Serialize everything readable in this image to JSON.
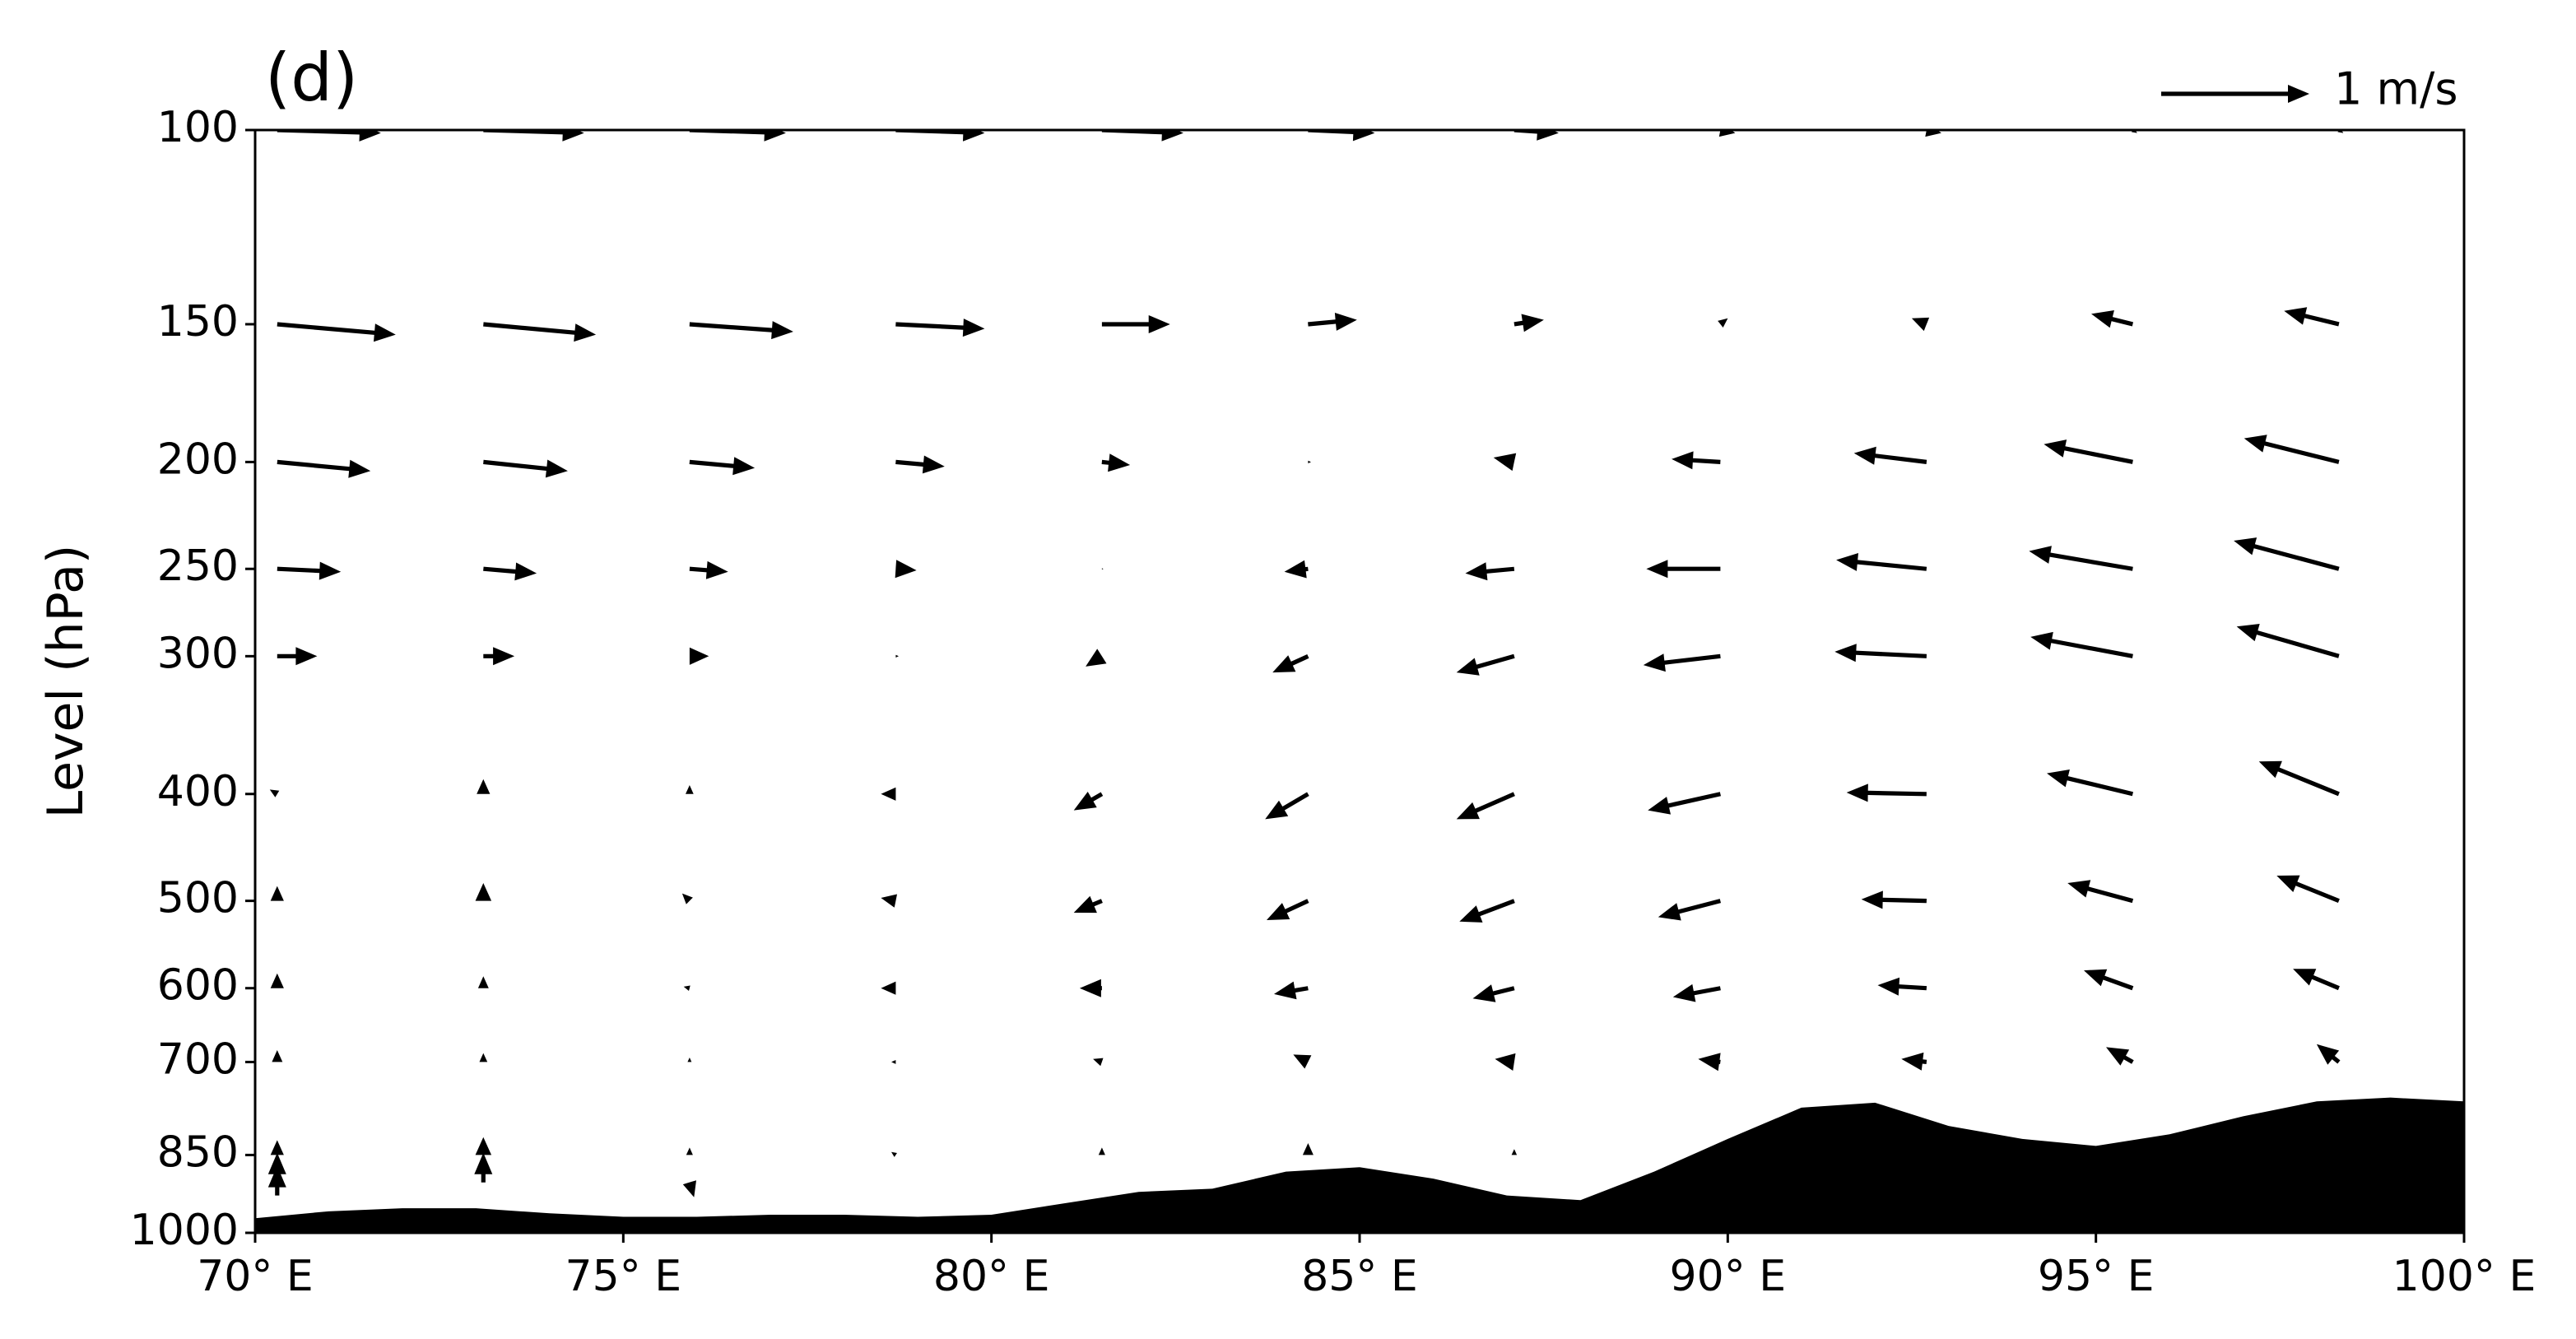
{
  "chart_data": {
    "type": "quiver",
    "title": "(d)",
    "ylabel": "Level (hPa)",
    "x": [
      70.3,
      73.1,
      75.9,
      78.7,
      81.5,
      84.3,
      87.1,
      89.9,
      92.7,
      95.5,
      98.3
    ],
    "levels": [
      100,
      150,
      200,
      250,
      300,
      400,
      500,
      600,
      700,
      850,
      900,
      925
    ],
    "u": [
      [
        0.7,
        0.68,
        0.65,
        0.6,
        0.55,
        0.45,
        0.3,
        0.1,
        0.1,
        0.03,
        0.03
      ],
      [
        0.8,
        0.76,
        0.7,
        0.6,
        0.46,
        0.33,
        0.2,
        0.05,
        -0.1,
        -0.28,
        -0.37
      ],
      [
        0.63,
        0.57,
        0.44,
        0.33,
        0.19,
        0.02,
        -0.14,
        -0.33,
        -0.49,
        -0.6,
        -0.64
      ],
      [
        0.43,
        0.36,
        0.26,
        0.14,
        0.01,
        -0.16,
        -0.33,
        -0.5,
        -0.61,
        -0.7,
        -0.71
      ],
      [
        0.27,
        0.21,
        0.13,
        0.02,
        -0.11,
        -0.24,
        -0.39,
        -0.52,
        -0.62,
        -0.69,
        -0.69
      ],
      [
        -0.05,
        0,
        0,
        -0.1,
        -0.19,
        -0.29,
        -0.39,
        -0.49,
        -0.54,
        -0.58,
        -0.54
      ],
      [
        0,
        0,
        -0.05,
        -0.1,
        -0.19,
        -0.28,
        -0.37,
        -0.42,
        -0.44,
        -0.44,
        -0.42
      ],
      [
        0,
        0,
        -0.04,
        -0.1,
        -0.15,
        -0.23,
        -0.28,
        -0.32,
        -0.33,
        -0.33,
        -0.31
      ],
      [
        0,
        0,
        0,
        -0.03,
        -0.06,
        -0.1,
        -0.13,
        -0.15,
        -0.17,
        -0.18,
        -0.15
      ],
      [
        0,
        0,
        0,
        -0.03,
        0,
        0,
        0,
        null,
        null,
        null,
        null
      ],
      [
        0,
        0,
        0.03,
        null,
        null,
        null,
        null,
        null,
        null,
        null,
        null
      ],
      [
        0,
        null,
        null,
        null,
        null,
        null,
        null,
        null,
        null,
        null,
        null
      ]
    ],
    "v": [
      [
        -0.02,
        -0.02,
        -0.02,
        -0.02,
        -0.02,
        -0.02,
        -0.02,
        -0.02,
        -0.02,
        -0.02,
        -0.02
      ],
      [
        -0.07,
        -0.07,
        -0.05,
        -0.03,
        0,
        0.03,
        0.03,
        0.04,
        0.04,
        0.07,
        0.09
      ],
      [
        -0.06,
        -0.06,
        -0.04,
        -0.03,
        -0.02,
        0,
        0.03,
        0.02,
        0.06,
        0.12,
        0.16
      ],
      [
        -0.02,
        -0.03,
        -0.02,
        -0.01,
        0,
        -0.02,
        -0.03,
        0,
        0.06,
        0.12,
        0.19
      ],
      [
        0,
        0,
        0,
        0,
        -0.07,
        -0.11,
        -0.11,
        -0.06,
        0.03,
        0.13,
        0.2
      ],
      [
        0.03,
        0.1,
        0.06,
        0,
        -0.11,
        -0.17,
        -0.17,
        -0.11,
        0.01,
        0.14,
        0.22
      ],
      [
        0.1,
        0.12,
        0.05,
        0.02,
        -0.08,
        -0.13,
        -0.14,
        -0.11,
        0.01,
        0.12,
        0.17
      ],
      [
        0.1,
        0.08,
        0.01,
        0,
        0,
        -0.04,
        -0.07,
        -0.06,
        0.02,
        0.12,
        0.13
      ],
      [
        0.08,
        0.06,
        0.03,
        0,
        0.02,
        0.05,
        0.02,
        0.02,
        0.02,
        0.1,
        0.12
      ],
      [
        0.1,
        0.12,
        0.05,
        0.02,
        0.05,
        0.08,
        0.04,
        null,
        null,
        null,
        null
      ],
      [
        0.2,
        0.2,
        -0.1,
        null,
        null,
        null,
        null,
        null,
        null,
        null,
        null
      ],
      [
        0.2,
        null,
        null,
        null,
        null,
        null,
        null,
        null,
        null,
        null,
        null
      ]
    ],
    "color": "#000000",
    "key": {
      "u": 1,
      "label": "1 m/s"
    },
    "terrain": {
      "x": [
        70,
        71,
        72,
        73,
        74,
        75,
        76,
        77,
        78,
        79,
        80,
        81,
        82,
        83,
        84,
        85,
        86,
        87,
        88,
        89,
        90,
        91,
        92,
        93,
        94,
        95,
        96,
        97,
        98,
        99,
        100
      ],
      "values": [
        970,
        956,
        950,
        950,
        960,
        967,
        967,
        963,
        963,
        967,
        963,
        940,
        918,
        912,
        880,
        872,
        893,
        925,
        934,
        880,
        822,
        770,
        762,
        800,
        822,
        834,
        814,
        784,
        760,
        754,
        760
      ],
      "color": "#000000"
    },
    "xlim": [
      70,
      100
    ],
    "xticks": [
      {
        "value": 70,
        "label": "70° E"
      },
      {
        "value": 75,
        "label": "75° E"
      },
      {
        "value": 80,
        "label": "80° E"
      },
      {
        "value": 85,
        "label": "85° E"
      },
      {
        "value": 90,
        "label": "90° E"
      },
      {
        "value": 95,
        "label": "95° E"
      },
      {
        "value": 100,
        "label": "100° E"
      }
    ],
    "ylim": [
      1000,
      100
    ],
    "yticks": [
      100,
      150,
      200,
      250,
      300,
      400,
      500,
      600,
      700,
      850,
      1000
    ],
    "ylog": true
  }
}
